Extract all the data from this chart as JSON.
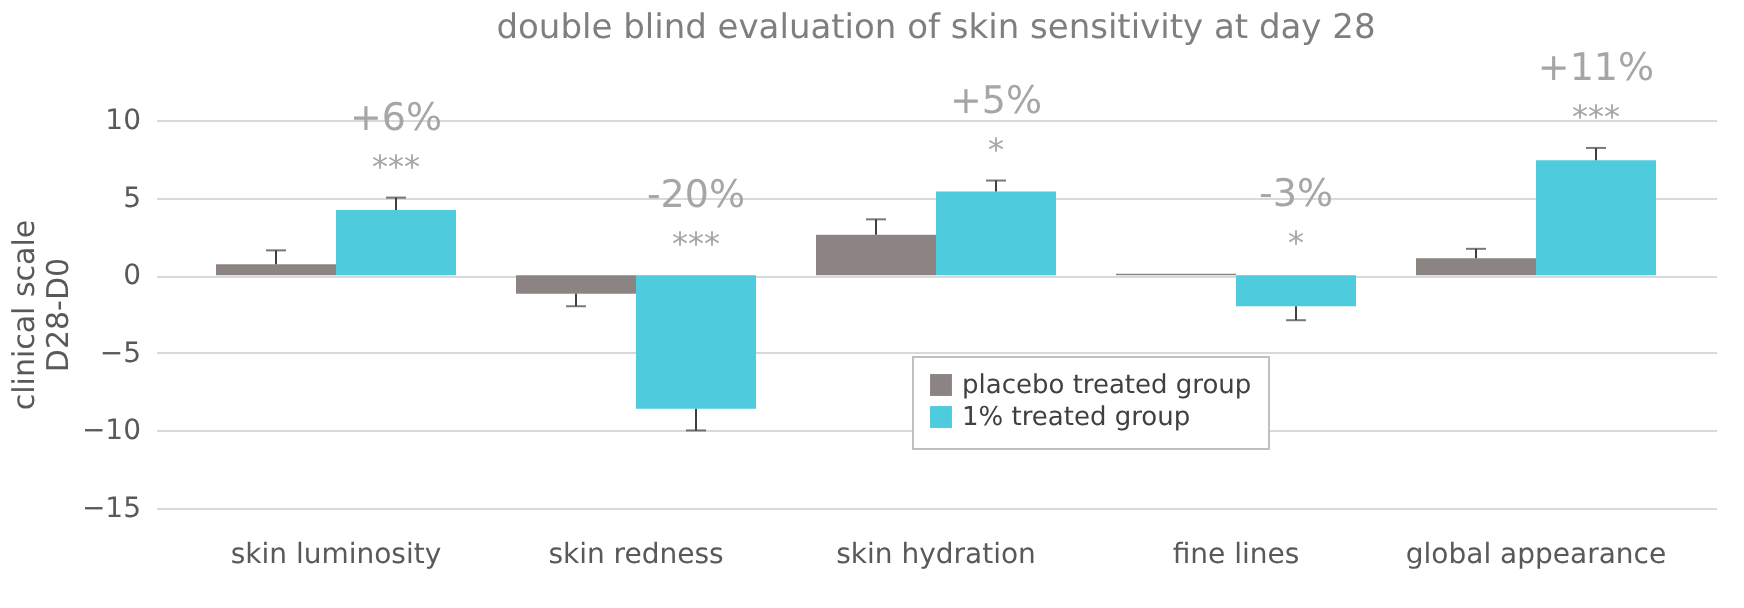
{
  "chart_data": {
    "type": "bar",
    "title": "double blind evaluation of skin sensitivity at day 28",
    "ylabel": "clinical scale\nD28-D0",
    "categories": [
      "skin luminosity",
      "skin redness",
      "skin hydration",
      "fine lines",
      "global appearance"
    ],
    "series": [
      {
        "name": "placebo treated group",
        "color": "#8c8482",
        "values": [
          0.7,
          -1.2,
          2.6,
          0.1,
          1.1
        ],
        "errors": [
          [
            0.7,
            1.6
          ],
          [
            -2.0,
            -1.2
          ],
          [
            2.6,
            3.6
          ],
          null,
          [
            1.1,
            1.7
          ]
        ]
      },
      {
        "name": "1% treated group",
        "color": "#4ecbdc",
        "values": [
          4.2,
          -8.6,
          5.4,
          -2.0,
          7.4
        ],
        "errors": [
          [
            4.2,
            5.0
          ],
          [
            -10.0,
            -8.6
          ],
          [
            5.4,
            6.1
          ],
          [
            -2.9,
            -2.0
          ],
          [
            7.4,
            8.2
          ]
        ]
      }
    ],
    "ylim": [
      -15,
      10
    ],
    "yticks": [
      -15,
      -10,
      -5,
      0,
      5,
      10
    ],
    "grid": "y",
    "legend": "bottom",
    "annotations": [
      "+6%",
      "***",
      "-20%",
      "***",
      "+5%",
      "*",
      "-3%",
      "*",
      "+11%",
      "***"
    ]
  }
}
